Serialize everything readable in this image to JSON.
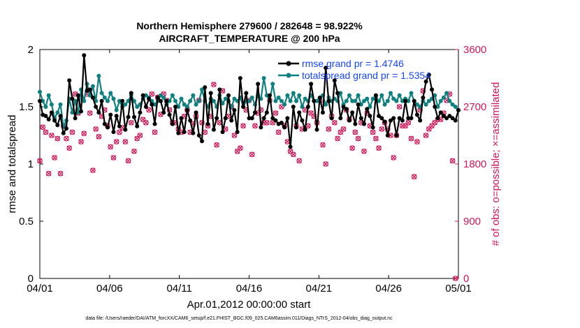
{
  "colors": {
    "rmse": "#000000",
    "spread": "#0f8080",
    "obs": "#d0175b",
    "legend_text": "#1646ff",
    "axis": "#000000"
  },
  "chart_data": {
    "type": "line",
    "title": "Northern Hemisphere 279600 / 282648 = 98.922%",
    "subtitle": "AIRCRAFT_TEMPERATURE @ 200 hPa",
    "xlabel": "Apr.01,2012 00:00:00 start",
    "ylabel_left": "rmse and totalspread",
    "ylabel_right": "# of obs: o=possible; ×=assimilated",
    "footer": "data file: /Users/raeder/DAI/ATM_forcXX/CAM6_setup/f.e21.FHIST_BGC.f09_025.CAM6assim.011/Diags_NTrS_2012-04/obs_diag_output.nc",
    "xlim": [
      0,
      30
    ],
    "ylim_left": [
      0,
      2
    ],
    "ylim_right": [
      0,
      3600
    ],
    "xticks": [
      0,
      5,
      10,
      15,
      20,
      25,
      30
    ],
    "xtick_labels": [
      "04/01",
      "04/06",
      "04/11",
      "04/16",
      "04/21",
      "04/26",
      "05/01"
    ],
    "yticks_left": [
      0,
      0.5,
      1,
      1.5,
      2
    ],
    "ytick_labels_left": [
      "0",
      "0.5",
      "1",
      "1.5",
      "2"
    ],
    "yticks_right": [
      0,
      900,
      1800,
      2700,
      3600
    ],
    "ytick_labels_right": [
      "0",
      "900",
      "1800",
      "2700",
      "3600"
    ],
    "legend": [
      "rmse grand pr = 1.4746",
      "totalspread grand pr = 1.5354"
    ],
    "series": [
      {
        "name": "rmse",
        "axis": "left",
        "marker": "dot",
        "values": [
          1.55,
          1.43,
          1.42,
          1.39,
          1.45,
          1.38,
          1.34,
          1.42,
          1.27,
          1.31,
          1.73,
          1.57,
          1.4,
          1.6,
          1.46,
          1.95,
          1.64,
          1.65,
          1.58,
          1.5,
          1.45,
          1.55,
          1.35,
          1.32,
          1.43,
          1.28,
          1.42,
          1.33,
          1.55,
          1.3,
          1.41,
          1.62,
          1.41,
          1.33,
          1.45,
          1.6,
          1.5,
          1.57,
          1.52,
          1.35,
          1.58,
          1.55,
          1.45,
          1.55,
          1.43,
          1.35,
          1.5,
          1.27,
          1.4,
          1.28,
          1.47,
          1.38,
          1.27,
          1.45,
          1.25,
          1.2,
          1.67,
          1.35,
          1.62,
          1.3,
          1.4,
          1.65,
          1.28,
          1.4,
          1.6,
          1.38,
          1.47,
          1.28,
          1.75,
          1.5,
          1.62,
          1.4,
          1.4,
          1.45,
          1.7,
          1.32,
          1.4,
          1.45,
          1.6,
          1.4,
          1.38,
          1.35,
          1.36,
          1.32,
          1.4,
          1.15,
          1.5,
          1.32,
          1.45,
          1.38,
          1.3,
          1.5,
          1.7,
          1.55,
          1.3,
          1.58,
          1.45,
          1.84,
          1.55,
          1.4,
          1.73,
          1.62,
          1.4,
          1.5,
          1.48,
          1.38,
          1.45,
          1.35,
          1.52,
          1.4,
          1.35,
          1.48,
          1.42,
          1.32,
          1.6,
          1.42,
          1.4,
          1.37,
          1.25,
          1.38,
          1.4,
          1.25,
          1.4,
          1.38,
          1.55,
          1.4,
          1.4,
          1.55,
          1.43,
          1.38,
          1.58,
          1.72,
          1.78,
          1.65,
          1.5,
          1.4,
          1.45,
          1.42,
          1.4,
          1.42,
          1.4,
          1.38,
          1.47
        ]
      },
      {
        "name": "totalspread",
        "axis": "left",
        "marker": "dot",
        "values": [
          1.63,
          1.55,
          1.5,
          1.6,
          1.52,
          1.4,
          1.45,
          1.52,
          1.33,
          1.38,
          1.57,
          1.45,
          1.55,
          1.45,
          1.65,
          1.55,
          1.7,
          1.6,
          1.68,
          1.55,
          1.77,
          1.62,
          1.58,
          1.55,
          1.62,
          1.57,
          1.47,
          1.55,
          1.5,
          1.52,
          1.55,
          1.6,
          1.55,
          1.5,
          1.52,
          1.57,
          1.6,
          1.58,
          1.55,
          1.52,
          1.55,
          1.6,
          1.58,
          1.52,
          1.55,
          1.6,
          1.55,
          1.5,
          1.57,
          1.52,
          1.5,
          1.55,
          1.6,
          1.52,
          1.55,
          1.65,
          1.55,
          1.5,
          1.57,
          1.55,
          1.5,
          1.6,
          1.53,
          1.57,
          1.55,
          1.5,
          1.57,
          1.55,
          1.58,
          1.5,
          1.55,
          1.55,
          1.58,
          1.52,
          1.6,
          1.57,
          1.75,
          1.6,
          1.55,
          1.7,
          1.55,
          1.58,
          1.55,
          1.52,
          1.6,
          1.55,
          1.62,
          1.55,
          1.6,
          1.5,
          1.57,
          1.55,
          1.6,
          1.55,
          1.55,
          1.57,
          1.6,
          1.52,
          1.58,
          1.55,
          1.57,
          1.55,
          1.62,
          1.52,
          1.55,
          1.6,
          1.55,
          1.55,
          1.6,
          1.52,
          1.55,
          1.57,
          1.5,
          1.57,
          1.58,
          1.55,
          1.6,
          1.52,
          1.55,
          1.62,
          1.57,
          1.55,
          1.6,
          1.55,
          1.57,
          1.55,
          1.62,
          1.55,
          1.52,
          1.5,
          1.55,
          1.52,
          1.55,
          1.57,
          1.6,
          1.5,
          1.55,
          1.58,
          1.62,
          1.55,
          1.52,
          1.5,
          1.47
        ]
      },
      {
        "name": "obs",
        "axis": "right",
        "marker": "circle-x",
        "values": [
          1850,
          2380,
          2300,
          1650,
          2250,
          1900,
          2200,
          1650,
          2400,
          2200,
          2050,
          2300,
          2900,
          2600,
          2150,
          2280,
          2900,
          2600,
          1700,
          2350,
          2230,
          2550,
          2650,
          2400,
          2070,
          1900,
          2150,
          2300,
          2370,
          2150,
          1850,
          2450,
          2000,
          2200,
          2250,
          2500,
          2450,
          2650,
          2900,
          2300,
          2850,
          2580,
          2900,
          2800,
          2650,
          2450,
          2450,
          2350,
          2300,
          2550,
          2650,
          2300,
          2430,
          2550,
          2800,
          2450,
          2300,
          2400,
          2550,
          3050,
          2100,
          2450,
          2950,
          2350,
          2550,
          2700,
          2250,
          2000,
          2050,
          2400,
          2650,
          2800,
          1950,
          2400,
          2600,
          2650,
          2450,
          2450,
          2800,
          2450,
          2600,
          2300,
          2700,
          2400,
          2150,
          2000,
          1950,
          2400,
          1850,
          2350,
          2650,
          2400,
          2600,
          2550,
          2450,
          2800,
          2100,
          1800,
          2350,
          2550,
          2450,
          2200,
          2300,
          2350,
          2650,
          2500,
          2050,
          2300,
          2200,
          2450,
          2000,
          2600,
          2400,
          2300,
          2200,
          2050,
          2350,
          2450,
          2350,
          2250,
          1900,
          2250,
          2700,
          2400,
          2400,
          2450,
          2200,
          1600,
          2150,
          2650,
          2950,
          2250,
          2350,
          2400,
          2450,
          2500,
          2500,
          2600,
          2800,
          2900,
          1850,
          0
        ]
      }
    ]
  }
}
